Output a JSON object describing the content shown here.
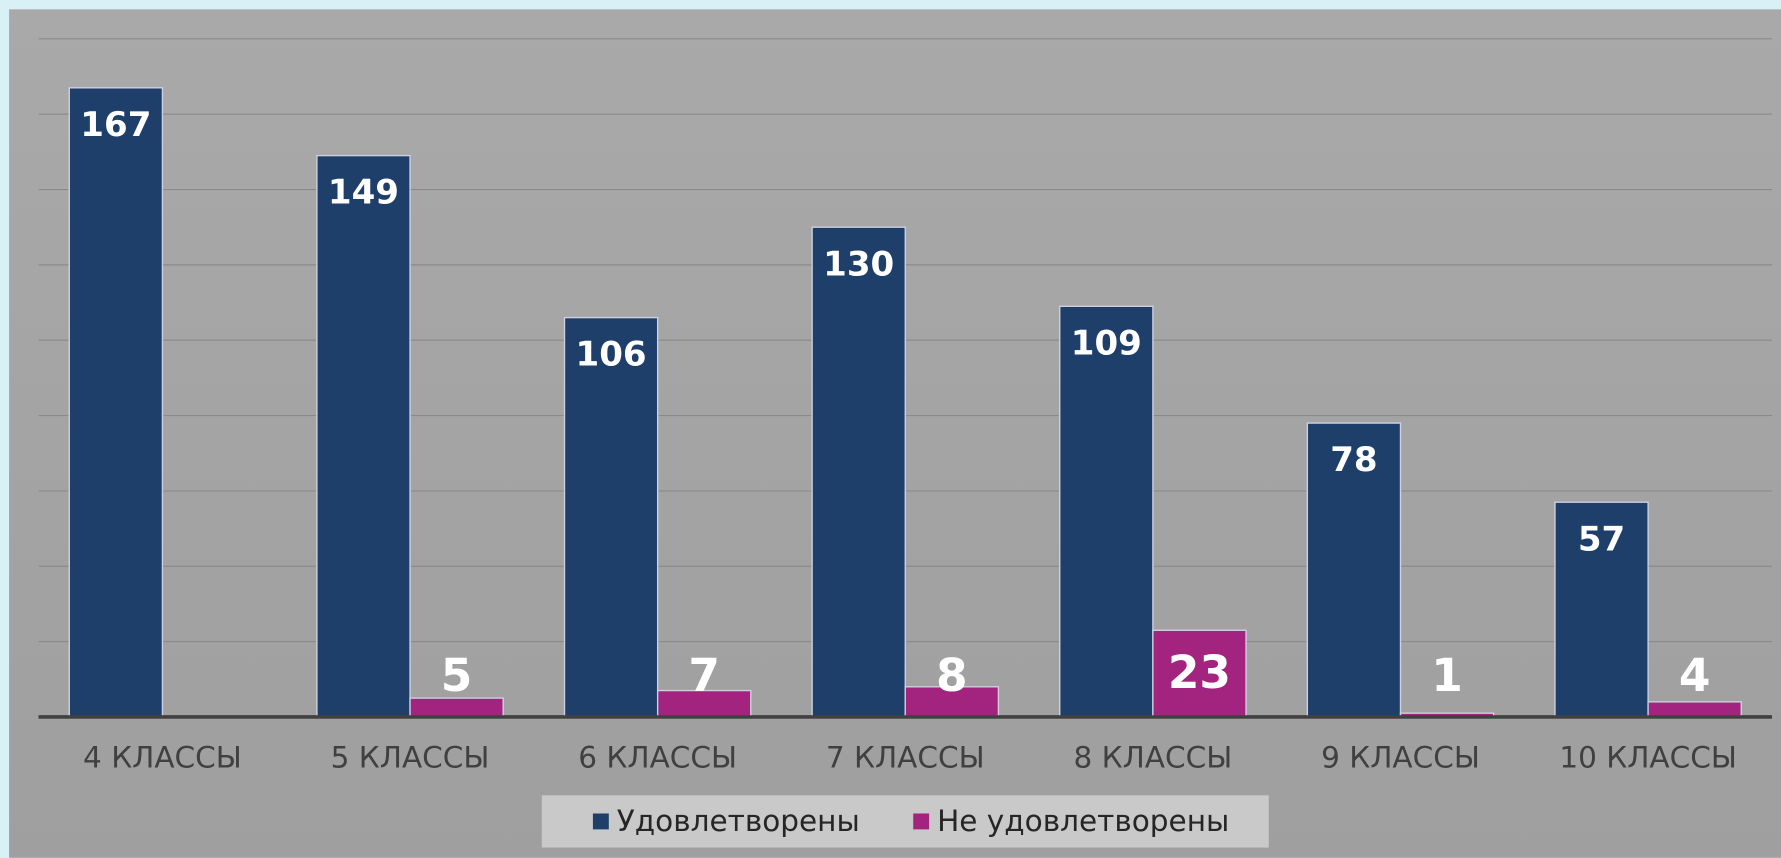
{
  "chart_data": {
    "type": "bar",
    "categories": [
      "4 КЛАССЫ",
      "5 КЛАССЫ",
      "6 КЛАССЫ",
      "7 КЛАССЫ",
      "8 КЛАССЫ",
      "9 КЛАССЫ",
      "10 КЛАССЫ"
    ],
    "series": [
      {
        "name": "Удовлетворены",
        "color": "#1f3f6b",
        "values": [
          167,
          149,
          106,
          130,
          109,
          78,
          57
        ]
      },
      {
        "name": "Не удовлетворены",
        "color": "#a3247f",
        "values": [
          null,
          5,
          7,
          8,
          23,
          1,
          4
        ]
      }
    ],
    "ylim": [
      0,
      180
    ],
    "yticks": [
      0,
      20,
      40,
      60,
      80,
      100,
      120,
      140,
      160,
      180
    ],
    "grid": true,
    "legend": "bottom"
  }
}
